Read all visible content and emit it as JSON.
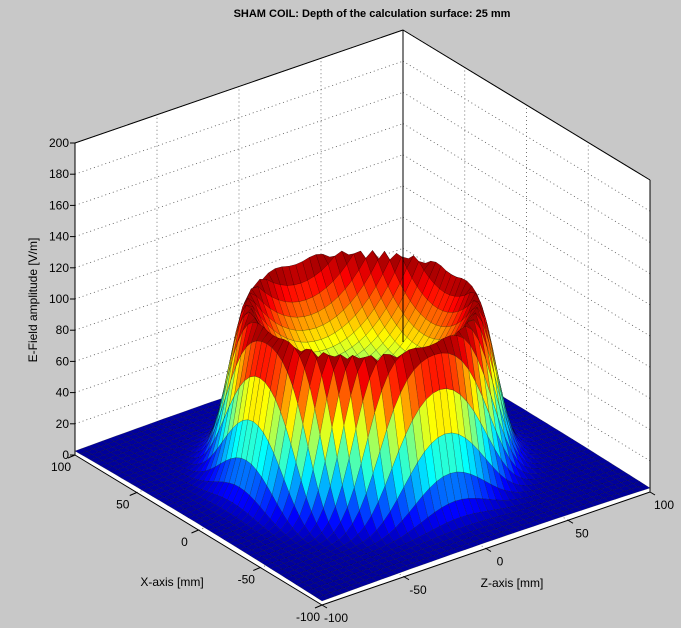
{
  "chart_data": {
    "type": "surface",
    "title": "SHAM COIL: Depth of the calculation surface: 25 mm",
    "xlabel": "X-axis [mm]",
    "zlabel": "Z-axis [mm]",
    "ylabel": "E-Field amplitude [V/m]",
    "x_ticks": [
      "100",
      "50",
      "0",
      "-50",
      "-100"
    ],
    "z_ticks": [
      "-100",
      "-50",
      "0",
      "50",
      "100"
    ],
    "y_ticks": [
      "0",
      "20",
      "40",
      "60",
      "80",
      "100",
      "120",
      "140",
      "160",
      "180",
      "200"
    ],
    "xlim": [
      -100,
      100
    ],
    "zlim": [
      -100,
      100
    ],
    "ylim": [
      0,
      200
    ],
    "grid": true,
    "colormap": "jet",
    "surface_shape": "ring (torus-shaped) peak with central dip",
    "ring_radius_mm": 55,
    "peak_amplitude": 110,
    "center_amplitude": 55,
    "edge_amplitude": 5,
    "background_color": "#c8c8c8"
  }
}
